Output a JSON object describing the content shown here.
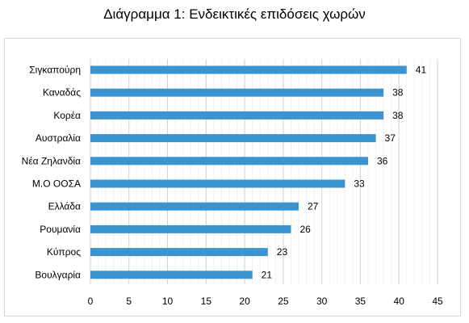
{
  "chart_data": {
    "type": "bar",
    "orientation": "horizontal",
    "title": "Διάγραμμα 1: Ενδεικτικές επιδόσεις χωρών",
    "categories": [
      "Σιγκαπούρη",
      "Καναδάς",
      "Κορέα",
      "Αυστραλία",
      "Νέα Ζηλανδία",
      "Μ.Ο ΟΟΣΑ",
      "Ελλάδα",
      "Ρουμανία",
      "Κύπρος",
      "Βουλγαρία"
    ],
    "values": [
      41,
      38,
      38,
      37,
      36,
      33,
      27,
      26,
      23,
      21
    ],
    "xlim": [
      0,
      45
    ],
    "xticks": [
      "0",
      "5",
      "10",
      "15",
      "20",
      "25",
      "30",
      "35",
      "40",
      "45"
    ],
    "xlabel": "",
    "ylabel": "",
    "grid": "vertical",
    "legend": "none",
    "data_labels": true,
    "colors": {
      "bar": "#3b93d1",
      "grid": "#d9d9d9",
      "frame": "#d9d9d9"
    }
  }
}
